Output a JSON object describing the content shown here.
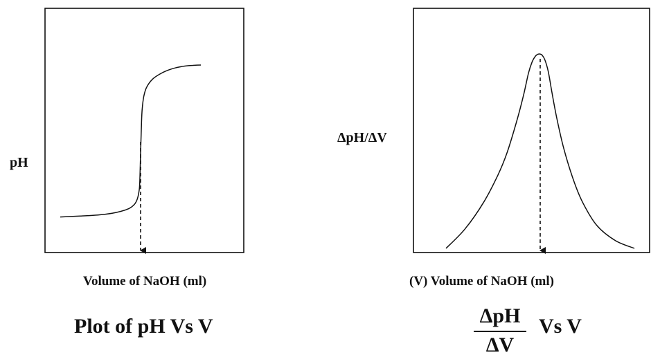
{
  "chart_data": [
    {
      "type": "line",
      "ylabel": "pH",
      "xlabel": "Volume of NaOH (ml)",
      "caption": "Plot of pH Vs V",
      "series": [
        {
          "x": [
            0,
            5,
            10,
            14,
            17,
            18.5,
            19.2,
            19.6,
            19.8,
            20.0,
            20.2,
            20.4,
            20.8,
            21.5,
            23,
            25,
            27,
            29,
            31,
            33,
            35
          ],
          "y": [
            1.0,
            1.05,
            1.12,
            1.25,
            1.45,
            1.7,
            2.0,
            2.4,
            2.9,
            4.5,
            6.0,
            6.9,
            7.6,
            8.1,
            8.55,
            8.85,
            9.05,
            9.18,
            9.26,
            9.3,
            9.32
          ]
        }
      ],
      "markers": [
        {
          "x": 20,
          "style": "dashed-arrow",
          "direction": "down"
        }
      ]
    },
    {
      "type": "line",
      "ylabel": "ΔpH/ΔV",
      "xlabel": "(V)  Volume of NaOH (ml)",
      "caption_fraction": {
        "numerator": "ΔpH",
        "denominator": "ΔV",
        "suffix": "Vs  V"
      },
      "series": [
        {
          "x": [
            0,
            4,
            8,
            11,
            13,
            15,
            16.5,
            17.5,
            18.3,
            19,
            19.6,
            20.0,
            20.4,
            21,
            21.7,
            22.5,
            23.5,
            25,
            27,
            29,
            32,
            36,
            40
          ],
          "y": [
            0.0,
            1.0,
            2.4,
            3.8,
            5.0,
            6.6,
            8.0,
            9.1,
            9.7,
            10.0,
            10.1,
            10.1,
            10.05,
            9.8,
            9.2,
            8.1,
            6.8,
            5.2,
            3.6,
            2.4,
            1.2,
            0.4,
            0.0
          ]
        }
      ],
      "markers": [
        {
          "x": 20,
          "style": "dashed-arrow",
          "direction": "down"
        }
      ]
    }
  ]
}
